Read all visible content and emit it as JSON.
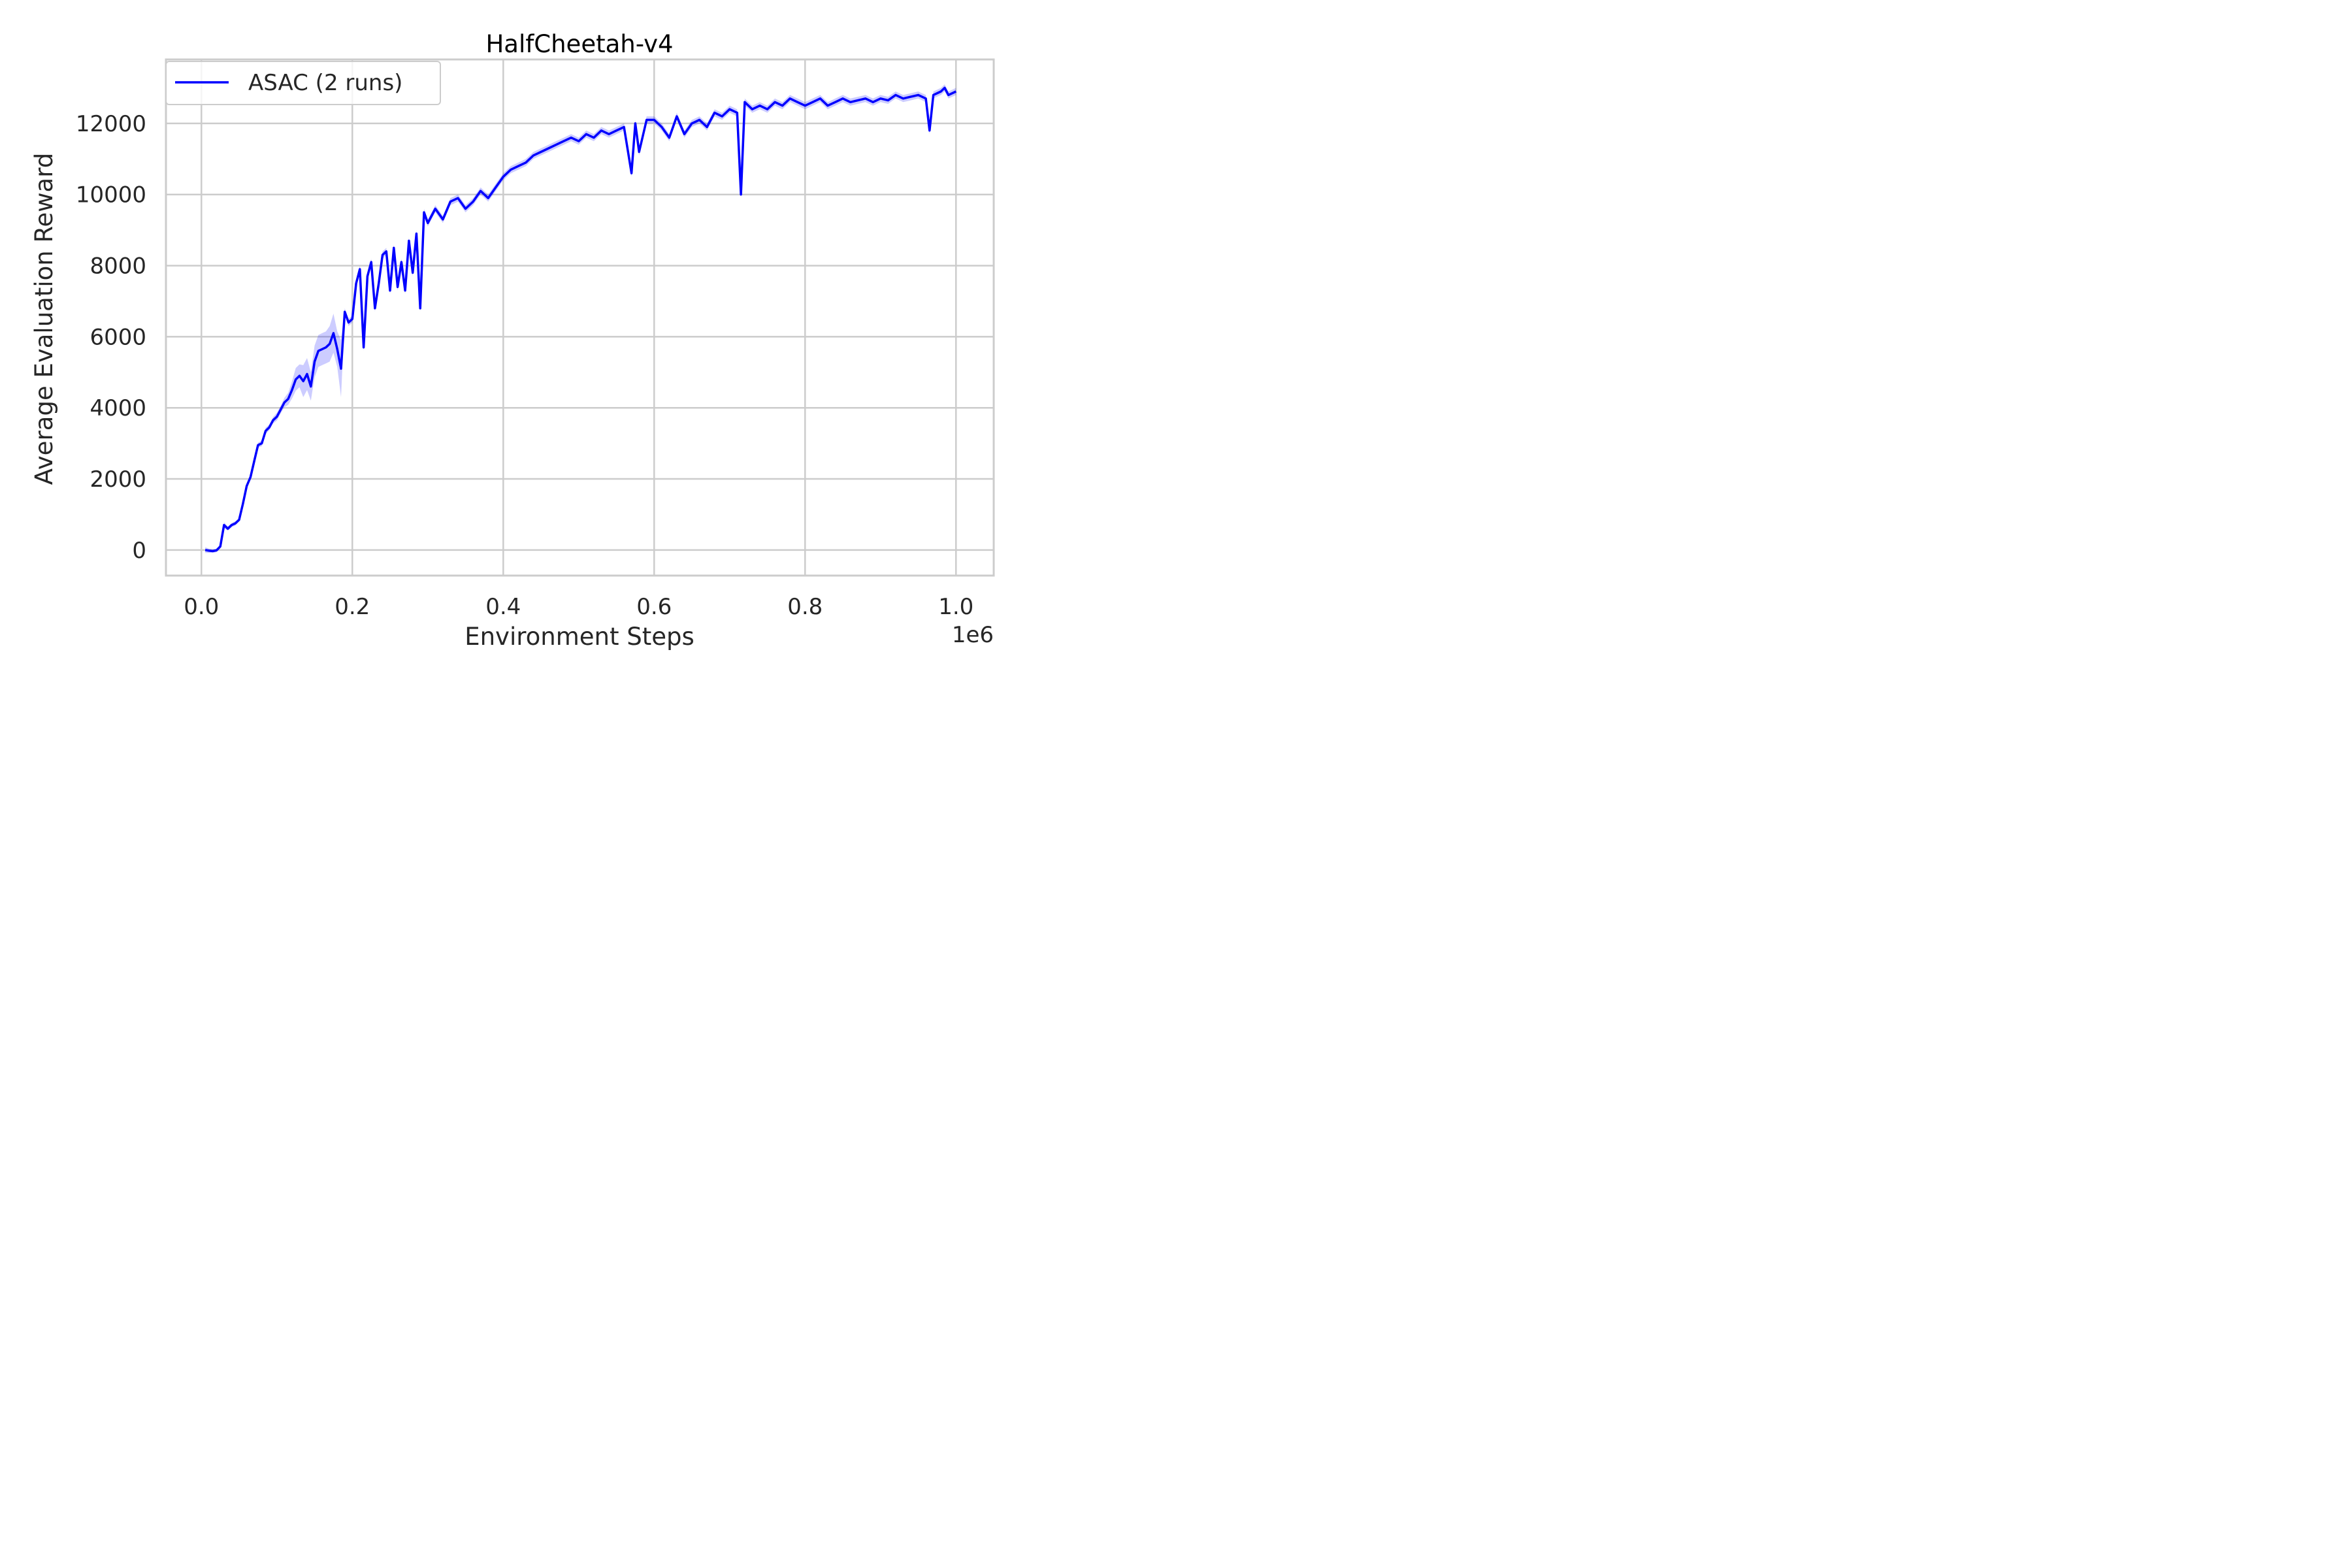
{
  "chart_data": {
    "type": "line",
    "title": "HalfCheetah-v4",
    "xlabel": "Environment Steps",
    "ylabel": "Average Evaluation Reward",
    "x_offset_label": "1e6",
    "xlim": [
      -0.047,
      1.05
    ],
    "ylim": [
      -720,
      13800
    ],
    "x_ticks": [
      0.0,
      0.2,
      0.4,
      0.6,
      0.8,
      1.0
    ],
    "x_tick_labels": [
      "0.0",
      "0.2",
      "0.4",
      "0.6",
      "0.8",
      "1.0"
    ],
    "y_ticks": [
      0,
      2000,
      4000,
      6000,
      8000,
      10000,
      12000
    ],
    "y_tick_labels": [
      "0",
      "2000",
      "4000",
      "6000",
      "8000",
      "10000",
      "12000"
    ],
    "grid": true,
    "legend_position": "top-left",
    "series": [
      {
        "name": "ASAC (2 runs)",
        "color": "#0000ff",
        "band_color": "#0000ff",
        "x": [
          0.005,
          0.01,
          0.015,
          0.02,
          0.025,
          0.03,
          0.035,
          0.04,
          0.045,
          0.05,
          0.055,
          0.06,
          0.065,
          0.07,
          0.075,
          0.08,
          0.085,
          0.09,
          0.095,
          0.1,
          0.105,
          0.11,
          0.115,
          0.12,
          0.125,
          0.13,
          0.135,
          0.14,
          0.145,
          0.15,
          0.155,
          0.16,
          0.165,
          0.17,
          0.175,
          0.18,
          0.185,
          0.19,
          0.195,
          0.2,
          0.205,
          0.21,
          0.215,
          0.22,
          0.225,
          0.23,
          0.235,
          0.24,
          0.245,
          0.25,
          0.255,
          0.26,
          0.265,
          0.27,
          0.275,
          0.28,
          0.285,
          0.29,
          0.295,
          0.3,
          0.31,
          0.32,
          0.33,
          0.34,
          0.35,
          0.36,
          0.37,
          0.38,
          0.39,
          0.4,
          0.41,
          0.42,
          0.43,
          0.44,
          0.45,
          0.46,
          0.47,
          0.48,
          0.49,
          0.5,
          0.51,
          0.52,
          0.53,
          0.54,
          0.55,
          0.56,
          0.57,
          0.575,
          0.58,
          0.59,
          0.6,
          0.61,
          0.62,
          0.63,
          0.64,
          0.65,
          0.66,
          0.67,
          0.68,
          0.69,
          0.7,
          0.71,
          0.715,
          0.72,
          0.73,
          0.74,
          0.75,
          0.76,
          0.77,
          0.78,
          0.79,
          0.8,
          0.81,
          0.82,
          0.83,
          0.84,
          0.85,
          0.86,
          0.87,
          0.88,
          0.89,
          0.9,
          0.91,
          0.92,
          0.93,
          0.94,
          0.95,
          0.96,
          0.965,
          0.97,
          0.98,
          0.985,
          0.99,
          1.0
        ],
        "y": [
          0,
          -20,
          -30,
          -10,
          100,
          700,
          600,
          700,
          750,
          850,
          1300,
          1800,
          2050,
          2500,
          2950,
          3000,
          3350,
          3450,
          3650,
          3750,
          3950,
          4150,
          4250,
          4500,
          4800,
          4900,
          4750,
          4950,
          4600,
          5300,
          5600,
          5650,
          5700,
          5800,
          6100,
          5650,
          5100,
          6700,
          6400,
          6500,
          7500,
          7900,
          5700,
          7700,
          8100,
          6800,
          7500,
          8300,
          8400,
          7300,
          8500,
          7400,
          8100,
          7300,
          8700,
          7800,
          8900,
          6800,
          9500,
          9200,
          9600,
          9300,
          9800,
          9900,
          9600,
          9800,
          10100,
          9900,
          10200,
          10500,
          10700,
          10800,
          10900,
          11100,
          11200,
          11300,
          11400,
          11500,
          11600,
          11500,
          11700,
          11600,
          11800,
          11700,
          11800,
          11900,
          10600,
          12000,
          11200,
          12100,
          12100,
          11900,
          11600,
          12200,
          11700,
          12000,
          12100,
          11900,
          12300,
          12200,
          12400,
          12300,
          10000,
          12600,
          12400,
          12500,
          12400,
          12600,
          12500,
          12700,
          12600,
          12500,
          12600,
          12700,
          12500,
          12600,
          12700,
          12600,
          12650,
          12700,
          12600,
          12700,
          12650,
          12800,
          12700,
          12750,
          12800,
          12700,
          11800,
          12800,
          12900,
          13000,
          12800,
          12900
        ],
        "band_lower": [
          -80,
          -80,
          -80,
          -60,
          60,
          620,
          540,
          640,
          690,
          800,
          1220,
          1720,
          1990,
          2440,
          2880,
          2920,
          3260,
          3370,
          3560,
          3640,
          3840,
          4020,
          4080,
          4260,
          4480,
          4580,
          4300,
          4500,
          4200,
          4850,
          5150,
          5200,
          5250,
          5300,
          5550,
          5150,
          4300,
          6600,
          6300,
          6400,
          7400,
          7800,
          5600,
          7600,
          8000,
          6700,
          7400,
          8200,
          8300,
          7200,
          8400,
          7300,
          8000,
          7200,
          8600,
          7700,
          8800,
          6700,
          9400,
          9100,
          9500,
          9200,
          9700,
          9800,
          9500,
          9700,
          10000,
          9800,
          10100,
          10400,
          10600,
          10700,
          10800,
          11000,
          11100,
          11200,
          11300,
          11400,
          11500,
          11400,
          11600,
          11500,
          11700,
          11600,
          11700,
          11800,
          10500,
          11900,
          11100,
          12000,
          12000,
          11800,
          11500,
          12100,
          11600,
          11900,
          12000,
          11800,
          12200,
          12100,
          12300,
          12200,
          9900,
          12500,
          12300,
          12400,
          12300,
          12500,
          12400,
          12600,
          12500,
          12400,
          12500,
          12600,
          12400,
          12500,
          12600,
          12500,
          12550,
          12600,
          12500,
          12600,
          12550,
          12700,
          12600,
          12650,
          12700,
          12600,
          11700,
          12700,
          12800,
          12900,
          12700,
          12800
        ],
        "band_upper": [
          80,
          40,
          20,
          40,
          140,
          780,
          660,
          760,
          810,
          900,
          1380,
          1880,
          2110,
          2560,
          3020,
          3080,
          3440,
          3530,
          3740,
          3860,
          4060,
          4280,
          4420,
          4740,
          5120,
          5220,
          5200,
          5400,
          5000,
          5750,
          6050,
          6100,
          6150,
          6300,
          6650,
          6150,
          5900,
          6800,
          6500,
          6600,
          7600,
          8000,
          5800,
          7800,
          8200,
          6900,
          7600,
          8400,
          8500,
          7400,
          8600,
          7500,
          8200,
          7400,
          8800,
          7900,
          9000,
          6900,
          9600,
          9300,
          9700,
          9400,
          9900,
          10000,
          9700,
          9900,
          10200,
          10000,
          10300,
          10600,
          10800,
          10900,
          11000,
          11200,
          11300,
          11400,
          11500,
          11600,
          11700,
          11600,
          11800,
          11700,
          11900,
          11800,
          11900,
          12000,
          10700,
          12100,
          11300,
          12200,
          12200,
          12000,
          11700,
          12300,
          11800,
          12100,
          12200,
          12000,
          12400,
          12300,
          12500,
          12400,
          10100,
          12700,
          12500,
          12600,
          12500,
          12700,
          12600,
          12800,
          12700,
          12600,
          12700,
          12800,
          12600,
          12700,
          12800,
          12700,
          12750,
          12800,
          12700,
          12800,
          12750,
          12900,
          12800,
          12850,
          12900,
          12800,
          11900,
          12900,
          13000,
          13100,
          12900,
          13000
        ]
      }
    ]
  }
}
